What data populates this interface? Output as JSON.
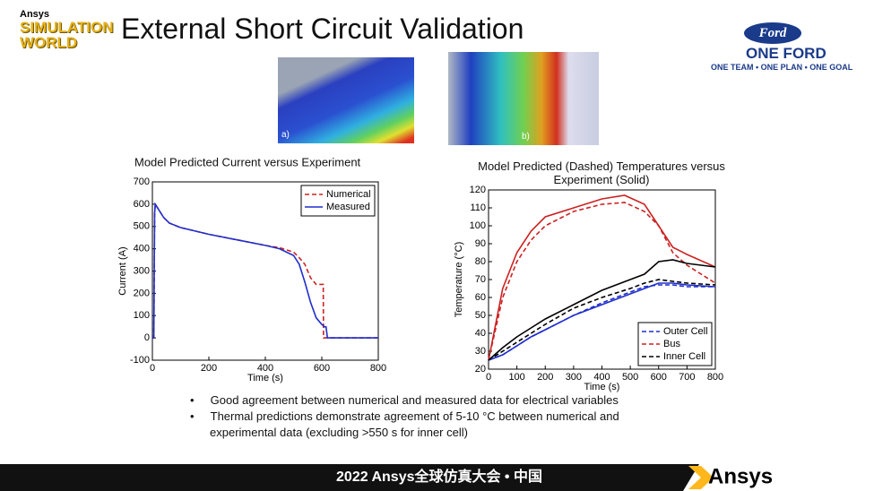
{
  "title": "External Short Circuit Validation",
  "logo_left": {
    "brand": "Ansys",
    "event": "SIMULATION WORLD"
  },
  "logo_right": {
    "oval": "Ford",
    "name": "ONE FORD",
    "tagline": "ONE TEAM • ONE PLAN • ONE GOAL"
  },
  "images": [
    {
      "label": "a)"
    },
    {
      "label": "b)"
    }
  ],
  "chart_data": [
    {
      "type": "line",
      "title": "Model Predicted Current versus Experiment",
      "x_label": "Time (s)",
      "y_label": "Current (A)",
      "xlim": [
        0,
        800
      ],
      "xticks": [
        0,
        200,
        400,
        600,
        800
      ],
      "ylim": [
        -100,
        700
      ],
      "yticks": [
        -100,
        0,
        100,
        200,
        300,
        400,
        500,
        600,
        700
      ],
      "legend": "upper right",
      "series": [
        {
          "name": "Numerical",
          "color": "#cc2222",
          "dash": true,
          "x": [
            0,
            5,
            8,
            10,
            20,
            40,
            60,
            100,
            200,
            300,
            400,
            450,
            500,
            520,
            540,
            560,
            580,
            600,
            605,
            606,
            800
          ],
          "values": [
            0,
            0,
            560,
            600,
            580,
            540,
            515,
            495,
            465,
            440,
            415,
            405,
            385,
            360,
            330,
            270,
            240,
            240,
            240,
            0,
            0
          ]
        },
        {
          "name": "Measured",
          "color": "#1f2ecc",
          "dash": false,
          "x": [
            0,
            5,
            8,
            10,
            20,
            40,
            60,
            100,
            200,
            300,
            400,
            450,
            500,
            520,
            540,
            560,
            580,
            600,
            610,
            615,
            620,
            800
          ],
          "values": [
            0,
            0,
            560,
            600,
            580,
            540,
            515,
            495,
            465,
            440,
            415,
            400,
            370,
            330,
            250,
            160,
            90,
            60,
            50,
            50,
            0,
            0
          ]
        }
      ]
    },
    {
      "type": "line",
      "title": "Model Predicted (Dashed) Temperatures versus Experiment (Solid)",
      "x_label": "Time (s)",
      "y_label": "Temperature (°C)",
      "xlim": [
        0,
        800
      ],
      "xticks": [
        0,
        100,
        200,
        300,
        400,
        500,
        600,
        700,
        800
      ],
      "ylim": [
        20,
        120
      ],
      "yticks": [
        20,
        30,
        40,
        50,
        60,
        70,
        80,
        90,
        100,
        110,
        120
      ],
      "legend": "lower right",
      "series": [
        {
          "name": "Outer Cell",
          "color": "#1f2ecc",
          "dash": true,
          "x": [
            0,
            50,
            100,
            150,
            200,
            300,
            400,
            500,
            550,
            600,
            650,
            700,
            800
          ],
          "values": [
            25,
            28,
            33,
            38,
            42,
            50,
            57,
            63,
            66,
            67,
            67,
            66,
            66
          ]
        },
        {
          "name": "Bus",
          "color": "#cc2222",
          "dash": true,
          "x": [
            0,
            50,
            100,
            150,
            200,
            300,
            400,
            480,
            550,
            600,
            650,
            700,
            800
          ],
          "values": [
            25,
            60,
            80,
            92,
            100,
            108,
            112,
            113,
            108,
            100,
            85,
            78,
            68
          ]
        },
        {
          "name": "Inner Cell",
          "color": "#000000",
          "dash": true,
          "x": [
            0,
            50,
            100,
            150,
            200,
            300,
            400,
            500,
            550,
            600,
            650,
            700,
            800
          ],
          "values": [
            25,
            30,
            35,
            40,
            45,
            54,
            60,
            65,
            68,
            70,
            69,
            68,
            67
          ]
        },
        {
          "color": "#1f2ecc",
          "dash": false,
          "x": [
            0,
            50,
            100,
            150,
            200,
            300,
            400,
            500,
            550,
            600,
            650,
            700,
            800
          ],
          "values": [
            25,
            28,
            33,
            38,
            42,
            50,
            56,
            62,
            65,
            68,
            68,
            67,
            66
          ]
        },
        {
          "color": "#cc2222",
          "dash": false,
          "x": [
            0,
            50,
            100,
            150,
            200,
            300,
            400,
            480,
            550,
            600,
            650,
            700,
            800
          ],
          "values": [
            25,
            65,
            85,
            97,
            105,
            110,
            115,
            117,
            112,
            100,
            88,
            84,
            77
          ]
        },
        {
          "color": "#000000",
          "dash": false,
          "x": [
            0,
            50,
            100,
            150,
            200,
            300,
            400,
            500,
            550,
            600,
            650,
            700,
            800
          ],
          "values": [
            25,
            32,
            38,
            43,
            48,
            56,
            64,
            70,
            73,
            80,
            81,
            79,
            77
          ]
        }
      ]
    }
  ],
  "bullets": [
    "Good agreement between numerical and measured data for electrical variables",
    "Thermal predictions demonstrate agreement of 5-10 °C between numerical and experimental data (excluding >550 s for inner cell)"
  ],
  "footer": {
    "event": "2022 Ansys全球仿真大会 • 中国",
    "brand": "Ansys"
  }
}
